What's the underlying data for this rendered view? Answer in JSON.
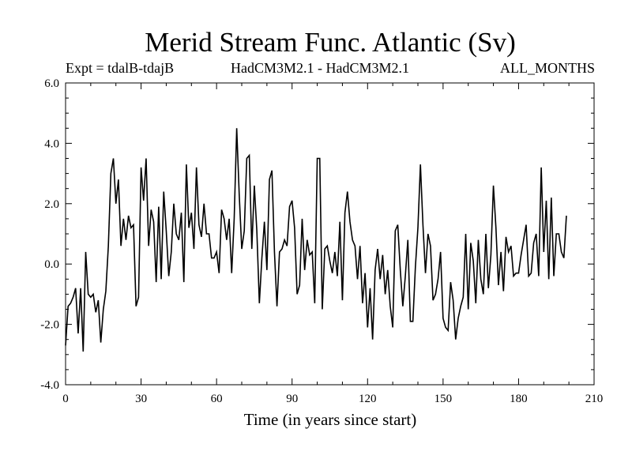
{
  "chart_data": {
    "type": "line",
    "title": "Merid Stream Func. Atlantic (Sv)",
    "subtitle_left": "Expt = tdalB-tdajB",
    "subtitle_center": "HadCM3M2.1 - HadCM3M2.1",
    "subtitle_right": "ALL_MONTHS",
    "xlabel": "Time (in years since start)",
    "ylabel": "",
    "xlim": [
      0,
      210
    ],
    "ylim": [
      -4.0,
      6.0
    ],
    "xticks": [
      0,
      30,
      60,
      90,
      120,
      150,
      180,
      210
    ],
    "yticks": [
      -4.0,
      -2.0,
      0.0,
      2.0,
      4.0,
      6.0
    ],
    "ytick_labels": [
      "-4.0",
      "-2.0",
      "0.0",
      "2.0",
      "4.0",
      "6.0"
    ],
    "line_color": "#000000",
    "series": [
      {
        "x": [
          0,
          1,
          2,
          3,
          4,
          5,
          6,
          7,
          8,
          9,
          10,
          11,
          12,
          13,
          14,
          15,
          16,
          17,
          18,
          19,
          20,
          21,
          22,
          23,
          24,
          25,
          26,
          27,
          28,
          29,
          30,
          31,
          32,
          33,
          34,
          35,
          36,
          37,
          38,
          39,
          40,
          41,
          42,
          43,
          44,
          45,
          46,
          47,
          48,
          49,
          50,
          51,
          52,
          53,
          54,
          55,
          56,
          57,
          58,
          59,
          60,
          61,
          62,
          63,
          64,
          65,
          66,
          67,
          68,
          69,
          70,
          71,
          72,
          73,
          74,
          75,
          76,
          77,
          78,
          79,
          80,
          81,
          82,
          83,
          84,
          85,
          86,
          87,
          88,
          89,
          90,
          91,
          92,
          93,
          94,
          95,
          96,
          97,
          98,
          99,
          100,
          101,
          102,
          103,
          104,
          105,
          106,
          107,
          108,
          109,
          110,
          111,
          112,
          113,
          114,
          115,
          116,
          117,
          118,
          119,
          120,
          121,
          122,
          123,
          124,
          125,
          126,
          127,
          128,
          129,
          130,
          131,
          132,
          133,
          134,
          135,
          136,
          137,
          138,
          139,
          140,
          141,
          142,
          143,
          144,
          145,
          146,
          147,
          148,
          149,
          150,
          151,
          152,
          153,
          154,
          155,
          156,
          157,
          158,
          159,
          160,
          161,
          162,
          163,
          164,
          165,
          166,
          167,
          168,
          169,
          170,
          171,
          172,
          173,
          174,
          175,
          176,
          177,
          178,
          179,
          180,
          181,
          182,
          183,
          184,
          185,
          186,
          187,
          188,
          189,
          190,
          191,
          192,
          193,
          194,
          195,
          196,
          197,
          198,
          199
        ],
        "values": [
          -2.7,
          -1.4,
          -1.3,
          -1.1,
          -0.8,
          -2.3,
          -0.8,
          -2.9,
          0.4,
          -1.0,
          -1.1,
          -1.0,
          -1.6,
          -1.2,
          -2.6,
          -1.5,
          -0.9,
          0.6,
          3.0,
          3.5,
          2.0,
          2.8,
          0.6,
          1.5,
          0.8,
          1.6,
          1.2,
          1.3,
          -1.4,
          -1.1,
          3.2,
          2.1,
          3.5,
          0.6,
          1.8,
          1.4,
          -0.6,
          1.9,
          -0.5,
          2.4,
          1.1,
          -0.4,
          0.4,
          2.0,
          1.0,
          0.8,
          1.7,
          -0.6,
          3.3,
          1.2,
          1.7,
          0.5,
          3.2,
          1.3,
          0.9,
          2.0,
          1.0,
          1.0,
          0.2,
          0.2,
          0.4,
          -0.3,
          1.8,
          1.5,
          0.8,
          1.5,
          -0.3,
          1.5,
          4.5,
          2.3,
          0.5,
          1.1,
          3.5,
          3.6,
          0.5,
          2.6,
          1.1,
          -1.3,
          0.2,
          1.4,
          -0.2,
          2.8,
          3.1,
          0.4,
          -1.4,
          0.4,
          0.5,
          0.8,
          0.6,
          1.9,
          2.1,
          1.2,
          -1.0,
          -0.7,
          1.5,
          -0.2,
          0.8,
          0.3,
          0.4,
          -1.3,
          3.5,
          3.5,
          -1.5,
          0.5,
          0.6,
          0.1,
          -0.3,
          0.4,
          -0.4,
          1.4,
          -1.2,
          1.7,
          2.4,
          1.4,
          0.8,
          0.6,
          -0.5,
          0.6,
          -1.3,
          -0.3,
          -2.1,
          -0.8,
          -2.5,
          -0.2,
          0.5,
          -0.5,
          0.3,
          -1.0,
          -0.2,
          -1.4,
          -2.1,
          1.1,
          1.3,
          -0.2,
          -1.4,
          -0.4,
          0.8,
          -1.9,
          -1.9,
          -0.1,
          1.2,
          3.3,
          1.3,
          -0.3,
          1.0,
          0.6,
          -1.2,
          -1.0,
          -0.5,
          0.4,
          -1.8,
          -2.1,
          -2.2,
          -0.6,
          -1.2,
          -2.5,
          -1.8,
          -1.4,
          -1.1,
          1.0,
          -1.5,
          0.7,
          0.1,
          -1.3,
          0.8,
          -0.5,
          -1.0,
          1.0,
          -0.8,
          0.3,
          2.6,
          1.2,
          -0.7,
          0.4,
          -0.9,
          0.9,
          0.4,
          0.6,
          -0.4,
          -0.3,
          -0.3,
          0.3,
          0.8,
          1.3,
          -0.4,
          -0.3,
          0.7,
          1.0,
          -0.4,
          3.2,
          0.4,
          2.1,
          -0.5,
          2.2,
          -0.4,
          1.0,
          1.0,
          0.4,
          0.2,
          1.6
        ]
      }
    ]
  }
}
